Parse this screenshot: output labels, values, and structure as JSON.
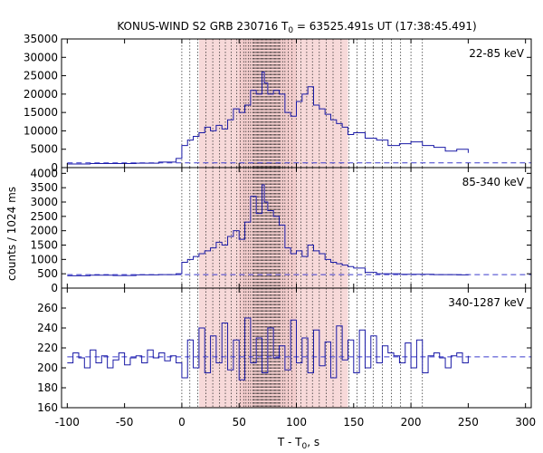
{
  "chart_data": {
    "type": "line",
    "title": {
      "prefix": "KONUS-WIND S2 GRB 230716 T",
      "sub": "0",
      "suffix": " = 63525.491s UT (17:38:45.491)"
    },
    "xlabel": {
      "text": "T - T",
      "sub": "0",
      "suffix": ", s"
    },
    "ylabel": "counts / 1024 ms",
    "xlim": [
      -105,
      305
    ],
    "xticks": [
      -100,
      -50,
      0,
      50,
      100,
      150,
      200,
      250,
      300
    ],
    "xtick_labels": [
      "-100",
      "-50",
      "0",
      "50",
      "100",
      "150",
      "200",
      "250",
      "300"
    ],
    "shaded_interval": [
      15,
      145
    ],
    "dark_shaded_interval": [
      50,
      100
    ],
    "colors": {
      "trace": "#1a1aa6",
      "background_line": "#3a3acc",
      "shade": "#f7d9d9",
      "shade_dark": "#eec3c3",
      "frame": "#000000"
    },
    "dotted_lines": [
      0,
      7,
      14,
      21,
      27,
      33,
      38,
      43,
      48,
      51,
      54,
      56,
      58,
      60,
      62,
      63,
      64,
      65,
      66,
      67,
      68,
      69,
      70,
      71,
      72,
      73,
      74,
      75,
      76,
      77,
      78,
      79,
      80,
      81,
      82,
      83,
      84,
      85,
      86,
      88,
      90,
      93,
      96,
      100,
      104,
      109,
      114,
      120,
      126,
      132,
      139,
      146,
      153,
      160,
      167,
      175,
      183,
      191,
      200,
      210
    ],
    "panels": [
      {
        "band": "22-85 keV",
        "ylim": [
          0,
          35000
        ],
        "yticks": [
          0,
          5000,
          10000,
          15000,
          20000,
          25000,
          30000,
          35000
        ],
        "ytick_labels": [
          "0",
          "5000",
          "10000",
          "15000",
          "20000",
          "25000",
          "30000",
          "35000"
        ],
        "background": 1300,
        "x": [
          -100,
          -80,
          -60,
          -40,
          -20,
          -5,
          0,
          5,
          10,
          15,
          20,
          25,
          30,
          35,
          40,
          45,
          50,
          55,
          60,
          65,
          70,
          72,
          75,
          80,
          85,
          90,
          95,
          100,
          105,
          110,
          115,
          120,
          125,
          130,
          135,
          140,
          145,
          150,
          160,
          170,
          180,
          190,
          200,
          210,
          220,
          230,
          240,
          250
        ],
        "values": [
          1000,
          1100,
          1100,
          1200,
          1500,
          2500,
          6000,
          7500,
          8500,
          9500,
          11000,
          10000,
          11500,
          10500,
          13000,
          16000,
          15000,
          17000,
          21000,
          20000,
          26000,
          23000,
          20000,
          21000,
          20000,
          15000,
          14000,
          18000,
          20000,
          22000,
          17000,
          16000,
          14500,
          13000,
          12000,
          11000,
          9000,
          9500,
          8000,
          7500,
          6000,
          6500,
          7000,
          6000,
          5500,
          4500,
          5000,
          4000
        ]
      },
      {
        "band": "85-340 keV",
        "ylim": [
          0,
          4200
        ],
        "yticks": [
          0,
          500,
          1000,
          1500,
          2000,
          2500,
          3000,
          3500,
          4000
        ],
        "ytick_labels": [
          "0",
          "500",
          "1000",
          "1500",
          "2000",
          "2500",
          "3000",
          "3500",
          "4000"
        ],
        "background": 470,
        "x": [
          -100,
          -80,
          -60,
          -40,
          -20,
          -5,
          0,
          5,
          10,
          15,
          20,
          25,
          30,
          35,
          40,
          45,
          50,
          55,
          60,
          65,
          70,
          72,
          75,
          80,
          85,
          90,
          95,
          100,
          105,
          110,
          115,
          120,
          125,
          130,
          135,
          140,
          145,
          150,
          160,
          170,
          180,
          190,
          200,
          210,
          220,
          230,
          240,
          250
        ],
        "values": [
          430,
          450,
          440,
          460,
          470,
          500,
          900,
          1000,
          1100,
          1200,
          1300,
          1400,
          1600,
          1500,
          1800,
          2000,
          1700,
          2300,
          3200,
          2600,
          3600,
          3000,
          2700,
          2500,
          2200,
          1400,
          1200,
          1300,
          1100,
          1500,
          1300,
          1200,
          1000,
          900,
          850,
          800,
          750,
          700,
          550,
          500,
          500,
          480,
          480,
          480,
          470,
          470,
          460,
          450
        ]
      },
      {
        "band": "340-1287 keV",
        "ylim": [
          160,
          280
        ],
        "yticks": [
          160,
          180,
          200,
          220,
          240,
          260
        ],
        "ytick_labels": [
          "160",
          "180",
          "200",
          "220",
          "240",
          "260"
        ],
        "background": 211,
        "x": [
          -100,
          -95,
          -90,
          -85,
          -80,
          -75,
          -70,
          -65,
          -60,
          -55,
          -50,
          -45,
          -40,
          -35,
          -30,
          -25,
          -20,
          -15,
          -10,
          -5,
          0,
          5,
          10,
          15,
          20,
          25,
          30,
          35,
          40,
          45,
          50,
          55,
          60,
          65,
          70,
          75,
          80,
          85,
          90,
          95,
          100,
          105,
          110,
          115,
          120,
          125,
          130,
          135,
          140,
          145,
          150,
          155,
          160,
          165,
          170,
          175,
          180,
          185,
          190,
          195,
          200,
          205,
          210,
          215,
          220,
          225,
          230,
          235,
          240,
          245,
          250
        ],
        "values": [
          205,
          215,
          210,
          200,
          218,
          205,
          212,
          200,
          208,
          215,
          203,
          210,
          212,
          205,
          218,
          210,
          215,
          207,
          212,
          205,
          190,
          228,
          200,
          240,
          195,
          232,
          205,
          245,
          198,
          228,
          188,
          250,
          205,
          230,
          195,
          240,
          210,
          222,
          198,
          248,
          205,
          230,
          195,
          238,
          202,
          226,
          190,
          242,
          208,
          228,
          195,
          238,
          200,
          232,
          205,
          222,
          215,
          212,
          205,
          225,
          200,
          228,
          195,
          212,
          215,
          210,
          200,
          212,
          215,
          205,
          212
        ]
      }
    ]
  }
}
